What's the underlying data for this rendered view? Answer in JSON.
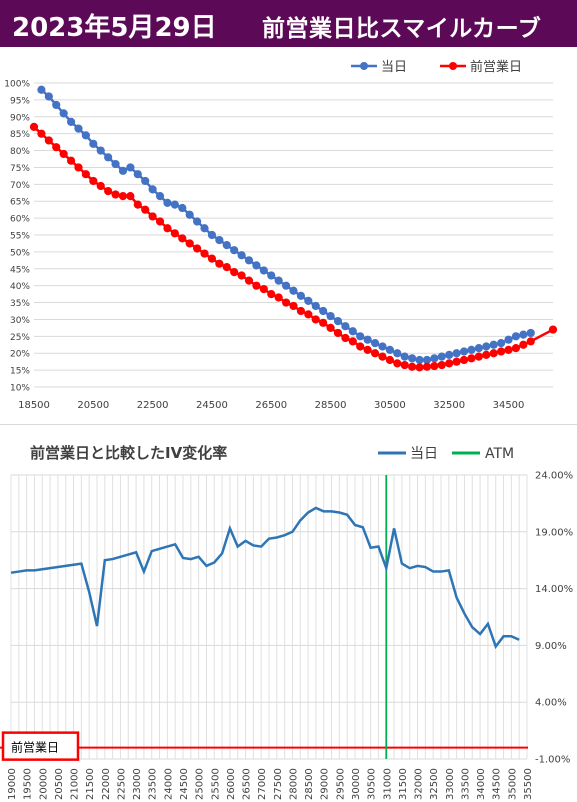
{
  "header": {
    "date": "2023年5月29日",
    "title": "前営業日比スマイルカーブ"
  },
  "colors": {
    "header_bg": "#5c0a57",
    "today": "#4472c4",
    "prev": "#ff0000",
    "iv_line": "#2e75b6",
    "atm": "#00b050",
    "grid": "#d9d9d9"
  },
  "chart_data": [
    {
      "type": "line",
      "title": "",
      "legend": {
        "position": "top-right",
        "entries": [
          "当日",
          "前営業日"
        ]
      },
      "xlim": [
        18500,
        36000
      ],
      "ylim": [
        0.1,
        1.0
      ],
      "x_ticks": [
        18500,
        20500,
        22500,
        24500,
        26500,
        28500,
        30500,
        32500,
        34500
      ],
      "y_ticks": [
        "10%",
        "15%",
        "20%",
        "25%",
        "30%",
        "35%",
        "40%",
        "45%",
        "50%",
        "55%",
        "60%",
        "65%",
        "70%",
        "75%",
        "80%",
        "85%",
        "90%",
        "95%",
        "100%"
      ],
      "grid": true,
      "series": [
        {
          "name": "当日",
          "color": "#4472c4",
          "points": [
            [
              18750,
              0.98
            ],
            [
              19000,
              0.96
            ],
            [
              19250,
              0.935
            ],
            [
              19500,
              0.91
            ],
            [
              19750,
              0.885
            ],
            [
              20000,
              0.865
            ],
            [
              20250,
              0.845
            ],
            [
              20500,
              0.82
            ],
            [
              20750,
              0.8
            ],
            [
              21000,
              0.78
            ],
            [
              21250,
              0.76
            ],
            [
              21500,
              0.74
            ],
            [
              21750,
              0.75
            ],
            [
              22000,
              0.73
            ],
            [
              22250,
              0.71
            ],
            [
              22500,
              0.685
            ],
            [
              22750,
              0.665
            ],
            [
              23000,
              0.645
            ],
            [
              23250,
              0.64
            ],
            [
              23500,
              0.63
            ],
            [
              23750,
              0.61
            ],
            [
              24000,
              0.59
            ],
            [
              24250,
              0.57
            ],
            [
              24500,
              0.55
            ],
            [
              24750,
              0.535
            ],
            [
              25000,
              0.52
            ],
            [
              25250,
              0.505
            ],
            [
              25500,
              0.49
            ],
            [
              25750,
              0.475
            ],
            [
              26000,
              0.46
            ],
            [
              26250,
              0.445
            ],
            [
              26500,
              0.43
            ],
            [
              26750,
              0.415
            ],
            [
              27000,
              0.4
            ],
            [
              27250,
              0.385
            ],
            [
              27500,
              0.37
            ],
            [
              27750,
              0.355
            ],
            [
              28000,
              0.34
            ],
            [
              28250,
              0.325
            ],
            [
              28500,
              0.31
            ],
            [
              28750,
              0.295
            ],
            [
              29000,
              0.28
            ],
            [
              29250,
              0.265
            ],
            [
              29500,
              0.25
            ],
            [
              29750,
              0.24
            ],
            [
              30000,
              0.23
            ],
            [
              30250,
              0.22
            ],
            [
              30500,
              0.21
            ],
            [
              30750,
              0.2
            ],
            [
              31000,
              0.19
            ],
            [
              31250,
              0.185
            ],
            [
              31500,
              0.18
            ],
            [
              31750,
              0.18
            ],
            [
              32000,
              0.185
            ],
            [
              32250,
              0.19
            ],
            [
              32500,
              0.195
            ],
            [
              32750,
              0.2
            ],
            [
              33000,
              0.205
            ],
            [
              33250,
              0.21
            ],
            [
              33500,
              0.215
            ],
            [
              33750,
              0.22
            ],
            [
              34000,
              0.225
            ],
            [
              34250,
              0.23
            ],
            [
              34500,
              0.24
            ],
            [
              34750,
              0.25
            ],
            [
              35000,
              0.255
            ],
            [
              35250,
              0.26
            ]
          ]
        },
        {
          "name": "前営業日",
          "color": "#ff0000",
          "points": [
            [
              18500,
              0.87
            ],
            [
              18750,
              0.85
            ],
            [
              19000,
              0.83
            ],
            [
              19250,
              0.81
            ],
            [
              19500,
              0.79
            ],
            [
              19750,
              0.77
            ],
            [
              20000,
              0.75
            ],
            [
              20250,
              0.73
            ],
            [
              20500,
              0.71
            ],
            [
              20750,
              0.695
            ],
            [
              21000,
              0.68
            ],
            [
              21250,
              0.67
            ],
            [
              21500,
              0.665
            ],
            [
              21750,
              0.665
            ],
            [
              22000,
              0.64
            ],
            [
              22250,
              0.625
            ],
            [
              22500,
              0.605
            ],
            [
              22750,
              0.59
            ],
            [
              23000,
              0.57
            ],
            [
              23250,
              0.555
            ],
            [
              23500,
              0.54
            ],
            [
              23750,
              0.525
            ],
            [
              24000,
              0.51
            ],
            [
              24250,
              0.495
            ],
            [
              24500,
              0.48
            ],
            [
              24750,
              0.465
            ],
            [
              25000,
              0.455
            ],
            [
              25250,
              0.44
            ],
            [
              25500,
              0.43
            ],
            [
              25750,
              0.415
            ],
            [
              26000,
              0.4
            ],
            [
              26250,
              0.39
            ],
            [
              26500,
              0.375
            ],
            [
              26750,
              0.365
            ],
            [
              27000,
              0.35
            ],
            [
              27250,
              0.34
            ],
            [
              27500,
              0.325
            ],
            [
              27750,
              0.315
            ],
            [
              28000,
              0.3
            ],
            [
              28250,
              0.29
            ],
            [
              28500,
              0.275
            ],
            [
              28750,
              0.26
            ],
            [
              29000,
              0.245
            ],
            [
              29250,
              0.235
            ],
            [
              29500,
              0.22
            ],
            [
              29750,
              0.21
            ],
            [
              30000,
              0.2
            ],
            [
              30250,
              0.19
            ],
            [
              30500,
              0.18
            ],
            [
              30750,
              0.17
            ],
            [
              31000,
              0.165
            ],
            [
              31250,
              0.16
            ],
            [
              31500,
              0.158
            ],
            [
              31750,
              0.16
            ],
            [
              32000,
              0.162
            ],
            [
              32250,
              0.165
            ],
            [
              32500,
              0.17
            ],
            [
              32750,
              0.175
            ],
            [
              33000,
              0.18
            ],
            [
              33250,
              0.185
            ],
            [
              33500,
              0.19
            ],
            [
              33750,
              0.195
            ],
            [
              34000,
              0.2
            ],
            [
              34250,
              0.205
            ],
            [
              34500,
              0.21
            ],
            [
              34750,
              0.215
            ],
            [
              35000,
              0.225
            ],
            [
              35250,
              0.235
            ],
            [
              36000,
              0.27
            ]
          ]
        }
      ]
    },
    {
      "type": "line",
      "title": "前営業日と比較したIV変化率",
      "legend": {
        "position": "top-right",
        "entries": [
          "当日",
          "ATM"
        ]
      },
      "categories": [
        "19000",
        "19500",
        "20000",
        "20500",
        "21000",
        "21500",
        "22000",
        "22500",
        "23000",
        "23500",
        "24000",
        "24500",
        "25000",
        "25500",
        "26000",
        "26500",
        "27000",
        "27500",
        "28000",
        "28500",
        "29000",
        "29500",
        "30000",
        "30500",
        "31000",
        "31500",
        "32000",
        "32500",
        "33000",
        "33500",
        "34000",
        "34500",
        "35000",
        "35500"
      ],
      "x_range": [
        19000,
        35500
      ],
      "ylim": [
        -0.01,
        0.24
      ],
      "y_ticks": [
        "24.00%",
        "19.00%",
        "14.00%",
        "9.00%",
        "4.00%",
        "-1.00%"
      ],
      "grid": true,
      "atm_strike": 31000,
      "baseline_label": "前営業日",
      "series": [
        {
          "name": "当日",
          "color": "#2e75b6",
          "points": [
            [
              19000,
              0.154
            ],
            [
              19250,
              0.155
            ],
            [
              19500,
              0.156
            ],
            [
              19750,
              0.156
            ],
            [
              20000,
              0.157
            ],
            [
              20250,
              0.158
            ],
            [
              20500,
              0.159
            ],
            [
              20750,
              0.16
            ],
            [
              21000,
              0.161
            ],
            [
              21250,
              0.162
            ],
            [
              21500,
              0.137
            ],
            [
              21750,
              0.107
            ],
            [
              22000,
              0.165
            ],
            [
              22250,
              0.166
            ],
            [
              22500,
              0.168
            ],
            [
              22750,
              0.17
            ],
            [
              23000,
              0.172
            ],
            [
              23250,
              0.155
            ],
            [
              23500,
              0.173
            ],
            [
              23750,
              0.175
            ],
            [
              24000,
              0.177
            ],
            [
              24250,
              0.179
            ],
            [
              24500,
              0.167
            ],
            [
              24750,
              0.166
            ],
            [
              25000,
              0.168
            ],
            [
              25250,
              0.16
            ],
            [
              25500,
              0.163
            ],
            [
              25750,
              0.171
            ],
            [
              26000,
              0.193
            ],
            [
              26250,
              0.177
            ],
            [
              26500,
              0.182
            ],
            [
              26750,
              0.178
            ],
            [
              27000,
              0.177
            ],
            [
              27250,
              0.184
            ],
            [
              27500,
              0.185
            ],
            [
              27750,
              0.187
            ],
            [
              28000,
              0.19
            ],
            [
              28250,
              0.2
            ],
            [
              28500,
              0.207
            ],
            [
              28750,
              0.211
            ],
            [
              29000,
              0.208
            ],
            [
              29250,
              0.208
            ],
            [
              29500,
              0.207
            ],
            [
              29750,
              0.205
            ],
            [
              30000,
              0.196
            ],
            [
              30250,
              0.194
            ],
            [
              30500,
              0.176
            ],
            [
              30750,
              0.177
            ],
            [
              31000,
              0.158
            ],
            [
              31250,
              0.193
            ],
            [
              31500,
              0.162
            ],
            [
              31750,
              0.158
            ],
            [
              32000,
              0.16
            ],
            [
              32250,
              0.159
            ],
            [
              32500,
              0.155
            ],
            [
              32750,
              0.155
            ],
            [
              33000,
              0.156
            ],
            [
              33250,
              0.132
            ],
            [
              33500,
              0.118
            ],
            [
              33750,
              0.106
            ],
            [
              34000,
              0.1
            ],
            [
              34250,
              0.109
            ],
            [
              34500,
              0.089
            ],
            [
              34750,
              0.098
            ],
            [
              35000,
              0.098
            ],
            [
              35250,
              0.095
            ]
          ]
        },
        {
          "name": "ATM",
          "color": "#00b050",
          "type": "vertical",
          "x": 31000
        }
      ]
    }
  ]
}
